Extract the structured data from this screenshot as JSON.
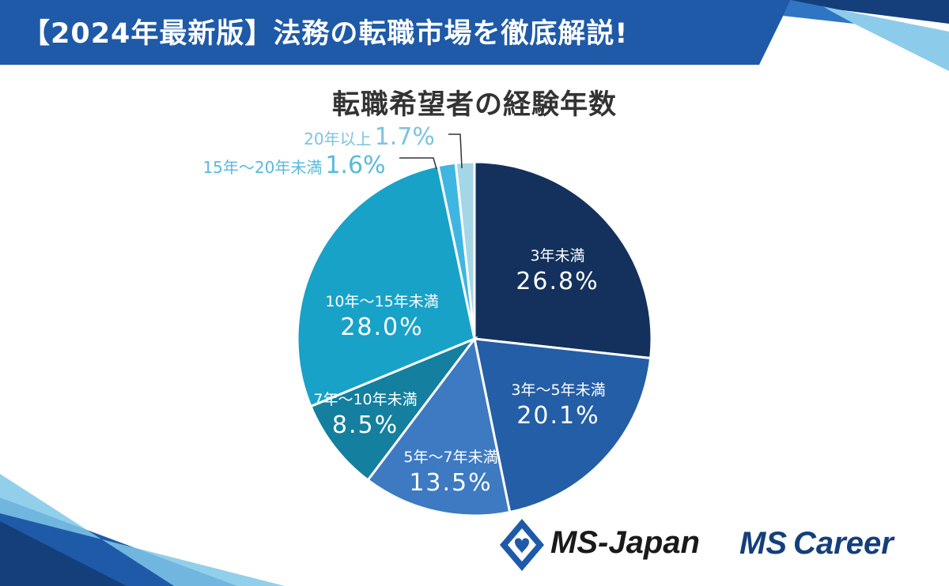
{
  "header": {
    "title": "【2024年最新版】法務の転職市場を徹底解説!"
  },
  "logos": {
    "ms_japan": "MS-Japan",
    "ms_career_prefix": "MS",
    "ms_career_suffix": "Career"
  },
  "colors": {
    "header_blue": "#1e5aa8",
    "header_dark": "#143f7a",
    "accent_light": "#7fc7e8"
  },
  "chart_data": {
    "type": "pie",
    "title": "転職希望者の経験年数",
    "start_angle_deg": 0,
    "direction": "clockwise",
    "slices": [
      {
        "label": "3年未満",
        "value": 26.8,
        "value_label": "26.8%",
        "color": "#13315c",
        "label_color": "#ffffff"
      },
      {
        "label": "3年〜5年未満",
        "value": 20.1,
        "value_label": "20.1%",
        "color": "#245ea6",
        "label_color": "#ffffff"
      },
      {
        "label": "5年〜7年未満",
        "value": 13.5,
        "value_label": "13.5%",
        "color": "#3d7ac2",
        "label_color": "#ffffff"
      },
      {
        "label": "7年〜10年未満",
        "value": 8.5,
        "value_label": "8.5%",
        "color": "#147f9e",
        "label_color": "#ffffff"
      },
      {
        "label": "10年〜15年未満",
        "value": 28.0,
        "value_label": "28.0%",
        "color": "#19a2c8",
        "label_color": "#ffffff"
      },
      {
        "label": "15年〜20年未満",
        "value": 1.6,
        "value_label": "1.6%",
        "color": "#3fb6e2",
        "label_color": "#5ab9dc"
      },
      {
        "label": "20年以上",
        "value": 1.7,
        "value_label": "1.7%",
        "color": "#a5d6e6",
        "label_color": "#7cc3df"
      }
    ]
  }
}
